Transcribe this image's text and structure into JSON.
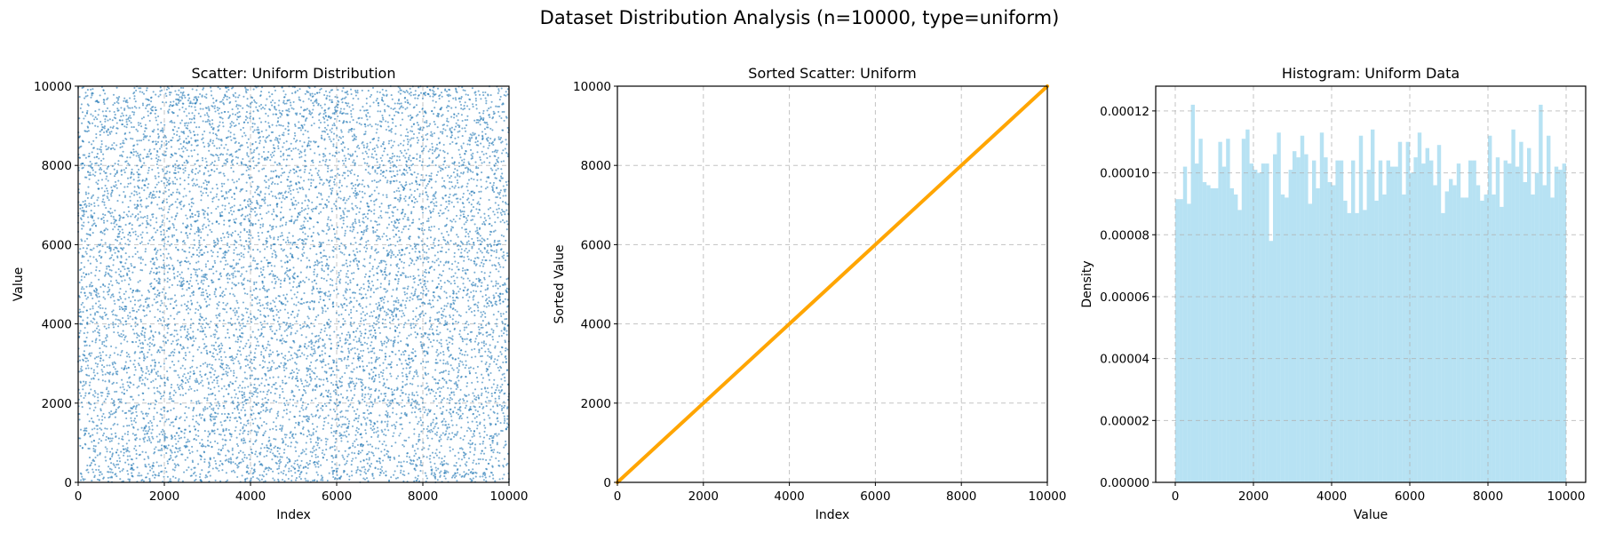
{
  "figure": {
    "suptitle": "Dataset Distribution Analysis (n=10000, type=uniform)"
  },
  "colors": {
    "scatter_points": "#1f77b4",
    "sorted_line": "#ffa500",
    "histogram_bars": "#87ceeb"
  },
  "chart_data": [
    {
      "type": "scatter",
      "title": "Scatter: Uniform Distribution",
      "xlabel": "Index",
      "ylabel": "Value",
      "xlim": [
        0,
        10000
      ],
      "ylim": [
        0,
        10000
      ],
      "xticks": [
        "0",
        "2000",
        "4000",
        "6000",
        "8000",
        "10000"
      ],
      "yticks": [
        "0",
        "2000",
        "4000",
        "6000",
        "8000",
        "10000"
      ],
      "grid": true,
      "series": [
        {
          "points_shown": 10000,
          "x_range": [
            0,
            9999
          ],
          "y_range": [
            0,
            10000
          ],
          "distribution": "uniform",
          "color": "#1f77b4",
          "alpha": 0.6
        }
      ]
    },
    {
      "type": "line",
      "title": "Sorted Scatter: Uniform",
      "xlabel": "Index",
      "ylabel": "Sorted Value",
      "xlim": [
        0,
        10000
      ],
      "ylim": [
        0,
        10000
      ],
      "xticks": [
        "0",
        "2000",
        "4000",
        "6000",
        "8000",
        "10000"
      ],
      "yticks": [
        "0",
        "2000",
        "4000",
        "6000",
        "8000",
        "10000"
      ],
      "grid": true,
      "series": [
        {
          "color": "#ffa500",
          "x": [
            0,
            1000,
            2000,
            3000,
            4000,
            5000,
            6000,
            7000,
            8000,
            9000,
            10000
          ],
          "y": [
            0,
            1000,
            2000,
            3000,
            4000,
            5000,
            6000,
            7000,
            8000,
            9000,
            10000
          ]
        }
      ]
    },
    {
      "type": "bar",
      "title": "Histogram: Uniform Data",
      "xlabel": "Value",
      "ylabel": "Density",
      "xlim": [
        -500,
        10500
      ],
      "ylim": [
        0,
        0.000128
      ],
      "xticks": [
        "0",
        "2000",
        "4000",
        "6000",
        "8000",
        "10000"
      ],
      "yticks": [
        "0.00000",
        "0.00002",
        "0.00004",
        "0.00006",
        "0.00008",
        "0.00010",
        "0.00012"
      ],
      "grid": true,
      "bins": 100,
      "bin_range": [
        0,
        10000
      ],
      "color": "#87ceeb",
      "alpha": 0.6,
      "values": [
        9.15e-05,
        9.15e-05,
        0.000102,
        9e-05,
        0.000122,
        0.000103,
        0.000111,
        9.7e-05,
        9.6e-05,
        9.5e-05,
        9.5e-05,
        0.00011,
        0.000102,
        0.000111,
        9.5e-05,
        9.3e-05,
        8.8e-05,
        0.000111,
        0.000114,
        0.000103,
        0.000101,
        0.0001,
        0.000103,
        0.000103,
        7.8e-05,
        0.000106,
        0.000113,
        9.3e-05,
        9.2e-05,
        0.000101,
        0.000107,
        0.000105,
        0.000112,
        0.000106,
        9e-05,
        0.000104,
        9.5e-05,
        0.000113,
        0.000105,
        9.7e-05,
        9.6e-05,
        0.000104,
        0.000104,
        9.1e-05,
        8.7e-05,
        0.000104,
        8.7e-05,
        0.000112,
        8.8e-05,
        0.000101,
        0.000114,
        9.1e-05,
        0.000104,
        9.3e-05,
        0.000104,
        0.000102,
        0.000102,
        0.00011,
        9.3e-05,
        0.00011,
        0.0001,
        0.000105,
        0.000113,
        0.000103,
        0.000108,
        0.000104,
        9.6e-05,
        0.000109,
        8.7e-05,
        9.4e-05,
        9.8e-05,
        9.6e-05,
        0.000103,
        9.2e-05,
        9.2e-05,
        0.000104,
        0.000104,
        9.6e-05,
        9.1e-05,
        9.3e-05,
        0.000112,
        9.3e-05,
        0.000105,
        8.9e-05,
        0.000104,
        0.000103,
        0.000114,
        0.000102,
        0.00011,
        9.7e-05,
        0.000108,
        9.3e-05,
        0.0001,
        0.000122,
        9.6e-05,
        0.000112,
        9.2e-05,
        0.000102,
        0.000101,
        0.000103
      ]
    }
  ]
}
